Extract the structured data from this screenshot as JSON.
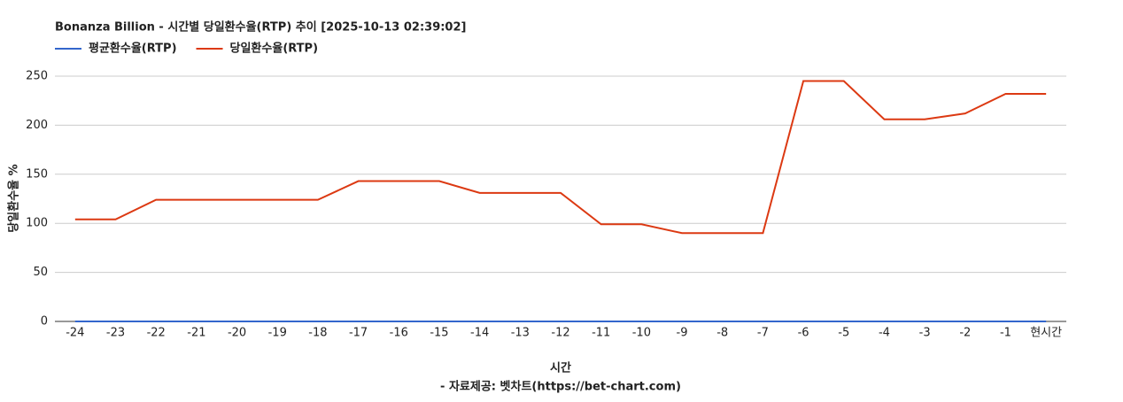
{
  "chart_data": {
    "type": "line",
    "title": "Bonanza Billion - 시간별 당일환수율(RTP) 추이 [2025-10-13 02:39:02]",
    "x_label": "시간",
    "y_label": "당일환수율 %",
    "footnote": "- 자료제공: 벳차트(https://bet-chart.com)",
    "categories": [
      "-24",
      "-23",
      "-22",
      "-21",
      "-20",
      "-19",
      "-18",
      "-17",
      "-16",
      "-15",
      "-14",
      "-13",
      "-12",
      "-11",
      "-10",
      "-9",
      "-8",
      "-7",
      "-6",
      "-5",
      "-4",
      "-3",
      "-2",
      "-1",
      "현시간"
    ],
    "series": [
      {
        "name": "평균환수율(RTP)",
        "color": "#3366cc",
        "values": [
          0,
          0,
          0,
          0,
          0,
          0,
          0,
          0,
          0,
          0,
          0,
          0,
          0,
          0,
          0,
          0,
          0,
          0,
          0,
          0,
          0,
          0,
          0,
          0,
          0
        ]
      },
      {
        "name": "당일환수율(RTP)",
        "color": "#dc3912",
        "values": [
          104,
          104,
          124,
          124,
          124,
          124,
          124,
          143,
          143,
          143,
          131,
          131,
          131,
          99,
          99,
          90,
          90,
          90,
          245,
          245,
          206,
          206,
          212,
          232,
          232
        ]
      }
    ],
    "ylim": [
      0,
      250
    ],
    "yticks": [
      0,
      50,
      100,
      150,
      200,
      250
    ],
    "grid": true,
    "legend": "top-left"
  }
}
